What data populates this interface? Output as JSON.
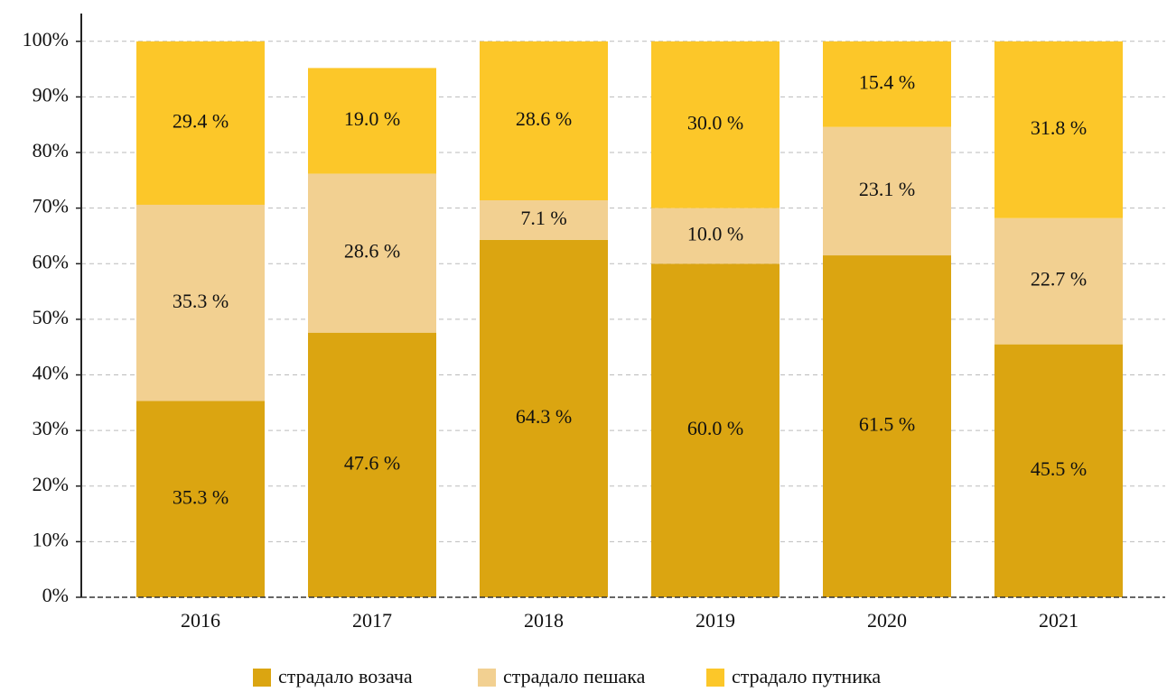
{
  "chart_data": {
    "type": "stacked_bar",
    "categories": [
      "2016",
      "2017",
      "2018",
      "2019",
      "2020",
      "2021"
    ],
    "series": [
      {
        "name": "страдало возача",
        "color": "#dba511",
        "values": [
          35.3,
          47.6,
          64.3,
          60.0,
          61.5,
          45.5
        ],
        "value_labels": [
          "35.3 %",
          "47.6 %",
          "64.3 %",
          "60.0 %",
          "61.5 %",
          "45.5 %"
        ]
      },
      {
        "name": "страдало пешака",
        "color": "#f2d091",
        "values": [
          35.3,
          28.6,
          7.1,
          10.0,
          23.1,
          22.7
        ],
        "value_labels": [
          "35.3 %",
          "28.6 %",
          "7.1 %",
          "10.0 %",
          "23.1 %",
          "22.7 %"
        ]
      },
      {
        "name": "страдало путника",
        "color": "#fcc729",
        "values": [
          29.4,
          19.0,
          28.6,
          30.0,
          15.4,
          31.8
        ],
        "value_labels": [
          "29.4 %",
          "19.0 %",
          "28.6 %",
          "30.0 %",
          "15.4 %",
          "31.8 %"
        ]
      }
    ],
    "ylim": [
      0,
      105
    ],
    "yticks": [
      {
        "value": 0,
        "label": "0%"
      },
      {
        "value": 10,
        "label": "10%"
      },
      {
        "value": 20,
        "label": "20%"
      },
      {
        "value": 30,
        "label": "30%"
      },
      {
        "value": 40,
        "label": "40%"
      },
      {
        "value": 50,
        "label": "50%"
      },
      {
        "value": 60,
        "label": "60%"
      },
      {
        "value": 70,
        "label": "70%"
      },
      {
        "value": 80,
        "label": "80%"
      },
      {
        "value": 90,
        "label": "90%"
      },
      {
        "value": 100,
        "label": "100%"
      }
    ],
    "grid": true,
    "legend": "bottom"
  }
}
